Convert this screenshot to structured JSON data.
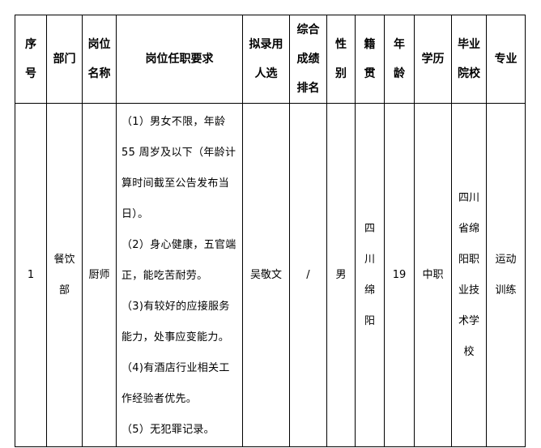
{
  "table": {
    "headers": [
      [
        "序",
        "号"
      ],
      [
        "部门"
      ],
      [
        "岗位",
        "名称"
      ],
      [
        "岗位任职要求"
      ],
      [
        "拟录用",
        "人选"
      ],
      [
        "综合",
        "成绩",
        "排名"
      ],
      [
        "性",
        "别"
      ],
      [
        "籍",
        "贯"
      ],
      [
        "年",
        "龄"
      ],
      [
        "学历"
      ],
      [
        "毕业",
        "院校"
      ],
      [
        "专业"
      ]
    ],
    "rows": [
      {
        "index": "1",
        "department": [
          "餐饮",
          "部"
        ],
        "position": "厨师",
        "requirements": [
          "（1）男女不限，年龄",
          "55 周岁及以下（年龄计",
          "算时间截至公告发布当",
          "日）。",
          "（2）身心健康，五官端",
          "正，能吃苦耐劳。",
          "（3)有较好的应接服务",
          "能力，处事应变能力。",
          "（4)有酒店行业相关工",
          "作经验者优先。",
          "（5）无犯罪记录。"
        ],
        "candidate": "吴敬文",
        "rank": "/",
        "gender": "男",
        "native_place": [
          "四",
          "川",
          "绵",
          "阳"
        ],
        "age": "19",
        "education": "中职",
        "school": [
          "四川",
          "省绵",
          "阳职",
          "业技",
          "术学",
          "校"
        ],
        "major": [
          "运动",
          "训练"
        ]
      }
    ]
  }
}
